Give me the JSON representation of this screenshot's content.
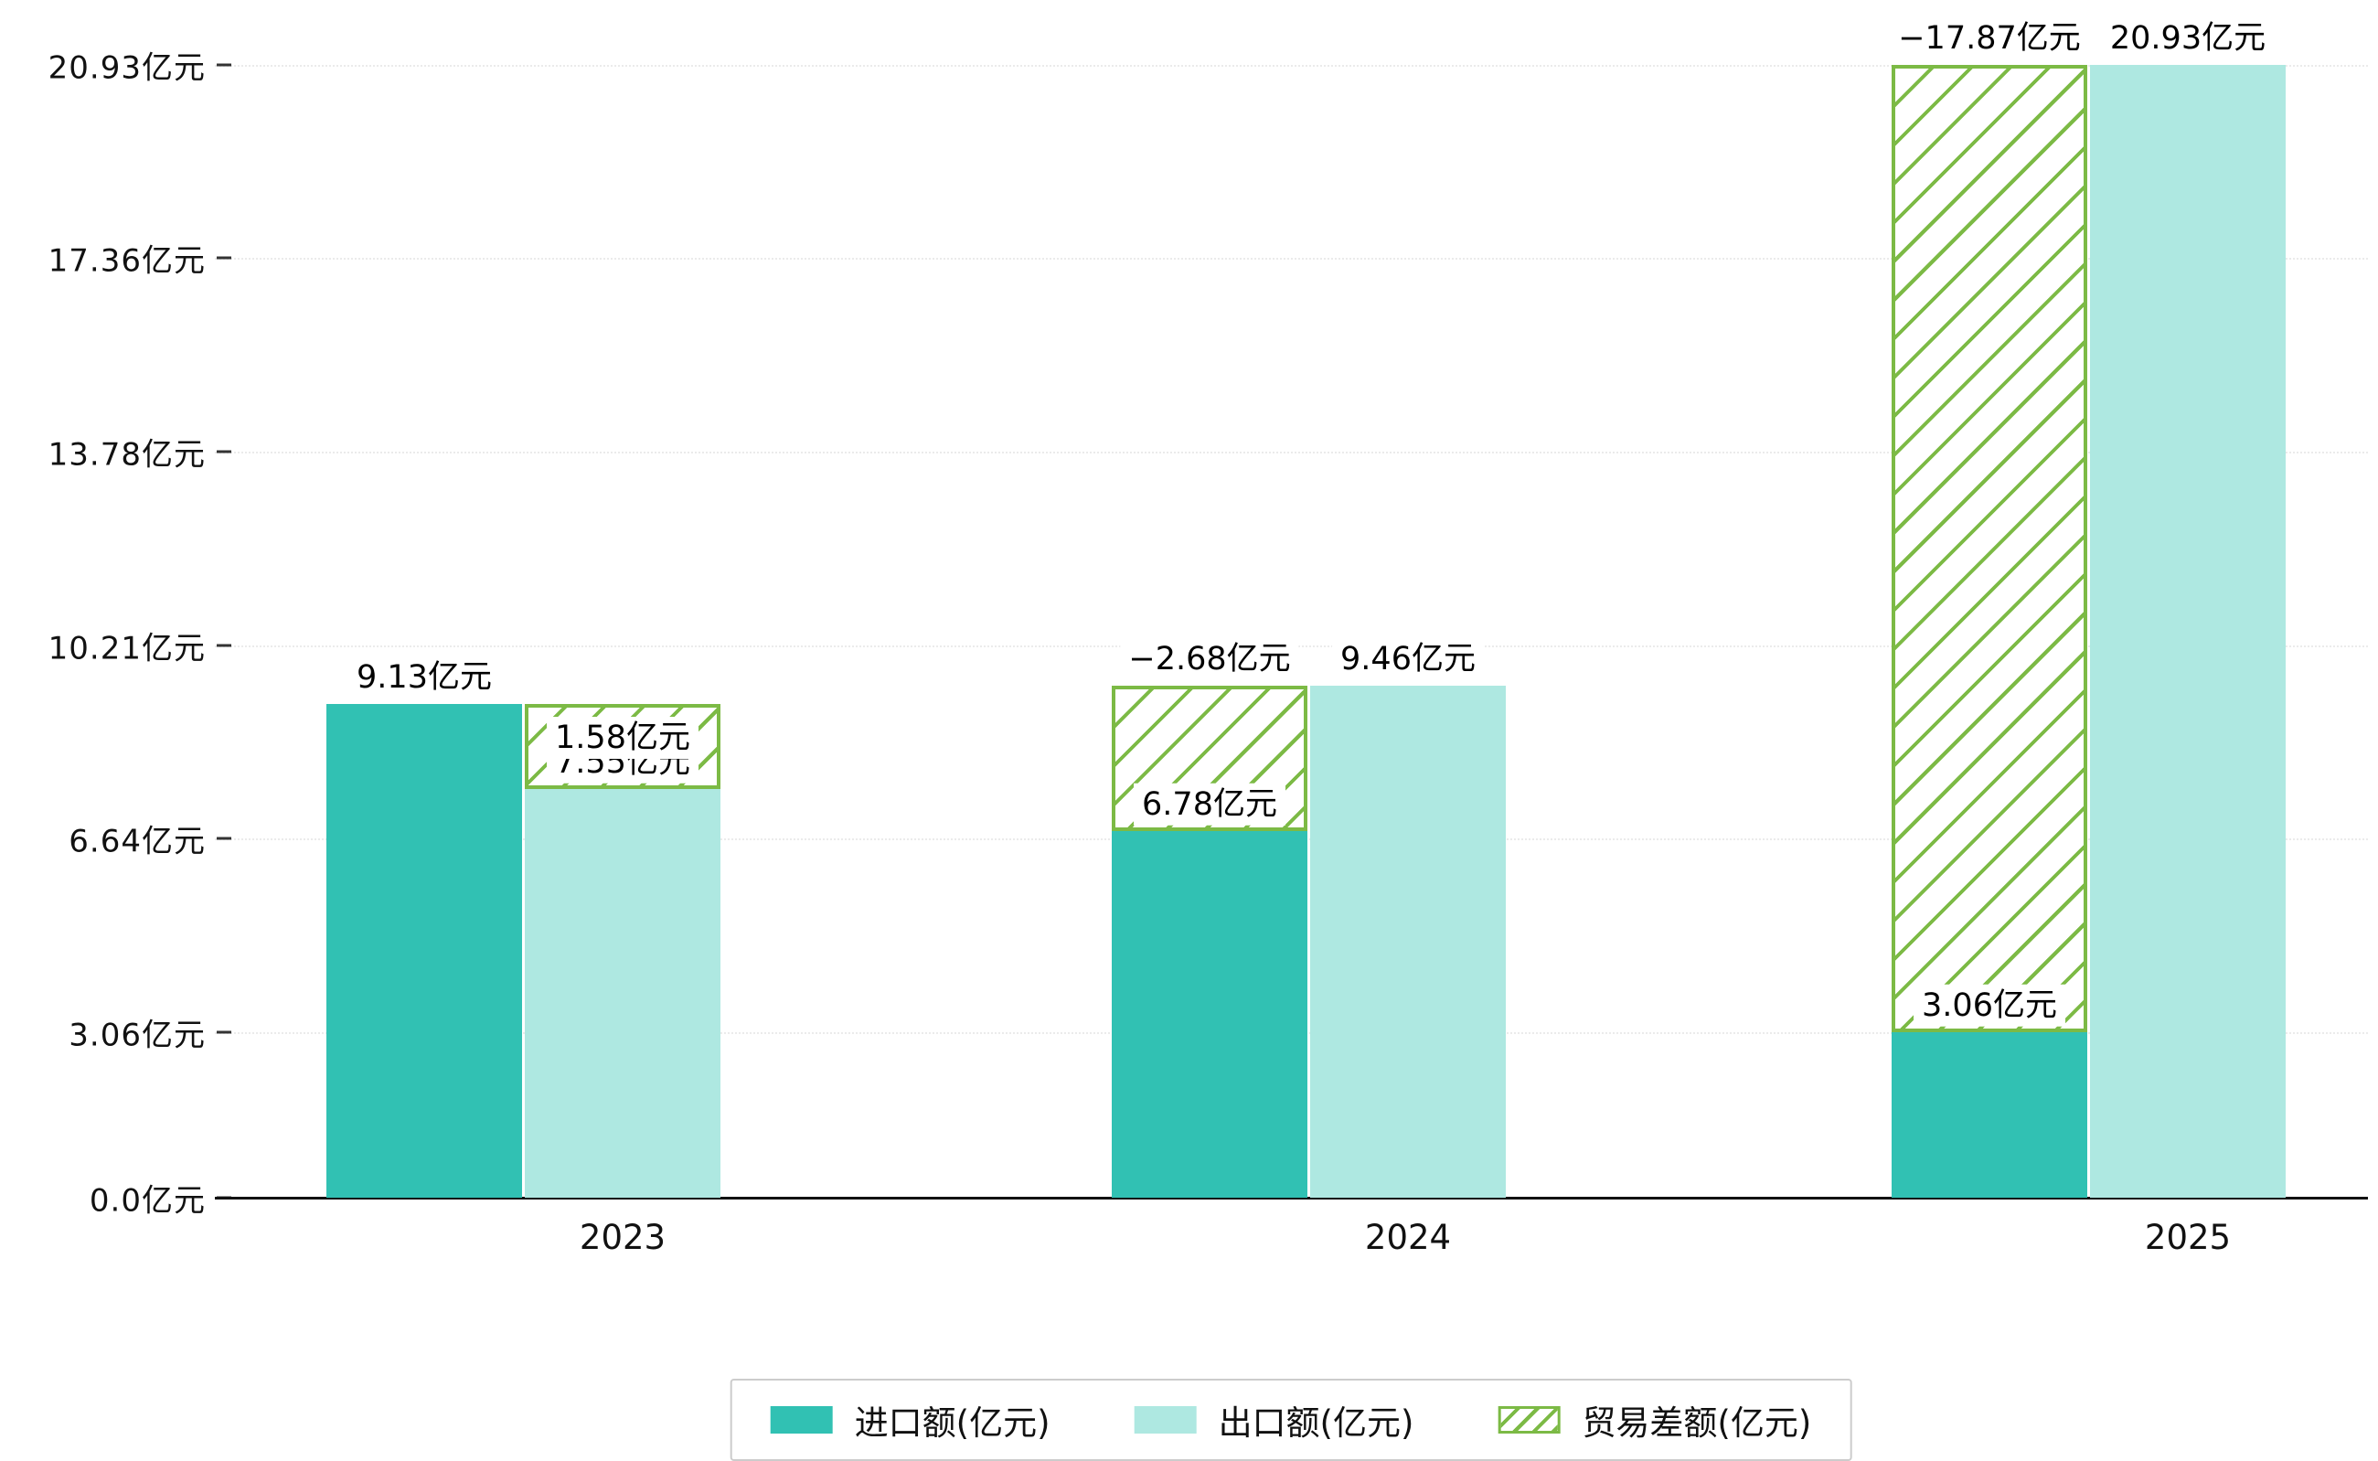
{
  "chart_data": {
    "type": "bar",
    "title": "",
    "unit": "亿元",
    "categories": [
      "2023",
      "2024",
      "2025"
    ],
    "series": [
      {
        "name": "进口额(亿元)",
        "values": [
          9.13,
          6.78,
          3.06
        ],
        "color": "#31c1b3",
        "label_texts": [
          "9.13亿元",
          "6.78亿元",
          "3.06亿元"
        ]
      },
      {
        "name": "出口额(亿元)",
        "values": [
          7.55,
          9.46,
          20.93
        ],
        "color": "#aee8e1",
        "label_texts": [
          "7.55亿元",
          "9.46亿元",
          "20.93亿元"
        ]
      },
      {
        "name": "贸易差额(亿元)",
        "values": [
          1.58,
          -2.68,
          -17.87
        ],
        "color": "#7cba45",
        "pattern": "diagonal-hatch",
        "label_texts": [
          "1.58亿元",
          "−2.68亿元",
          "−17.87亿元"
        ]
      }
    ],
    "y_tick_values": [
      0,
      3.06,
      6.64,
      10.21,
      13.78,
      17.36,
      20.93
    ],
    "y_tick_labels": [
      "0.0亿元",
      "3.06亿元",
      "6.64亿元",
      "10.21亿元",
      "13.78亿元",
      "17.36亿元",
      "20.93亿元"
    ],
    "ylim": [
      0,
      20.93
    ],
    "grid": "horizontal-dotted",
    "legend": {
      "position": "bottom",
      "items": [
        "进口额(亿元)",
        "出口额(亿元)",
        "贸易差额(亿元)"
      ]
    }
  }
}
